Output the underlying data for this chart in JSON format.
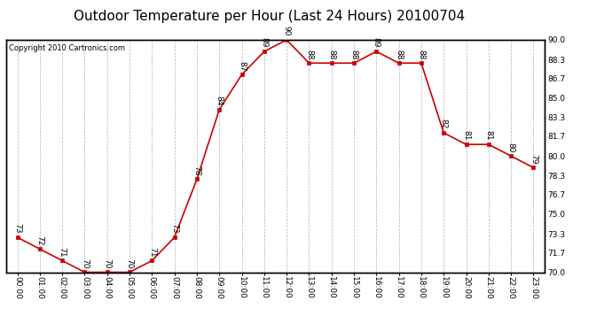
{
  "title": "Outdoor Temperature per Hour (Last 24 Hours) 20100704",
  "copyright": "Copyright 2010 Cartronics.com",
  "hours": [
    "00:00",
    "01:00",
    "02:00",
    "03:00",
    "04:00",
    "05:00",
    "06:00",
    "07:00",
    "08:00",
    "09:00",
    "10:00",
    "11:00",
    "12:00",
    "13:00",
    "14:00",
    "15:00",
    "16:00",
    "17:00",
    "18:00",
    "19:00",
    "20:00",
    "21:00",
    "22:00",
    "23:00"
  ],
  "temps": [
    73,
    72,
    71,
    70,
    70,
    70,
    71,
    73,
    78,
    84,
    87,
    89,
    90,
    88,
    88,
    88,
    89,
    88,
    88,
    82,
    81,
    81,
    80,
    79
  ],
  "line_color": "#cc0000",
  "marker_color": "#cc0000",
  "bg_color": "#ffffff",
  "grid_color": "#b0b0b0",
  "ylim_min": 70.0,
  "ylim_max": 90.0,
  "yticks": [
    70.0,
    71.7,
    73.3,
    75.0,
    76.7,
    78.3,
    80.0,
    81.7,
    83.3,
    85.0,
    86.7,
    88.3,
    90.0
  ],
  "title_fontsize": 11,
  "label_fontsize": 6.5,
  "copyright_fontsize": 6,
  "annotation_fontsize": 6.5
}
